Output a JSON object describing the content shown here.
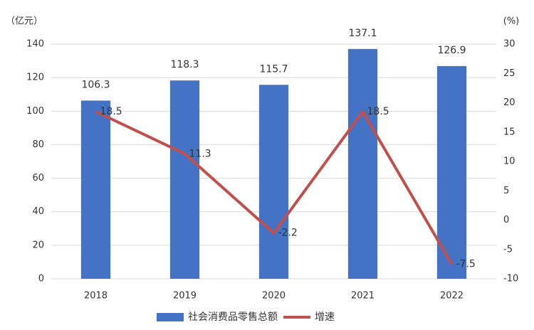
{
  "chart_data": {
    "type": "bar",
    "y_label": "（亿元）",
    "y2_label": "(%)",
    "categories": [
      "2018",
      "2019",
      "2020",
      "2021",
      "2022"
    ],
    "series": [
      {
        "name": "社会消费品零售总额",
        "color": "#4472c4",
        "type": "bar",
        "values": [
          106.3,
          118.3,
          115.7,
          137.1,
          126.9
        ]
      },
      {
        "name": "增速",
        "color": "#c0504d",
        "type": "line",
        "axis": "y2",
        "values": [
          18.5,
          11.3,
          -2.2,
          18.5,
          -7.5
        ]
      }
    ],
    "ylim": [
      0,
      140
    ],
    "yticks": [
      0,
      20,
      40,
      60,
      80,
      100,
      120,
      140
    ],
    "y2lim": [
      -10,
      30
    ],
    "y2ticks": [
      -10,
      -5,
      0,
      5,
      10,
      15,
      20,
      25,
      30
    ],
    "grid": true
  }
}
